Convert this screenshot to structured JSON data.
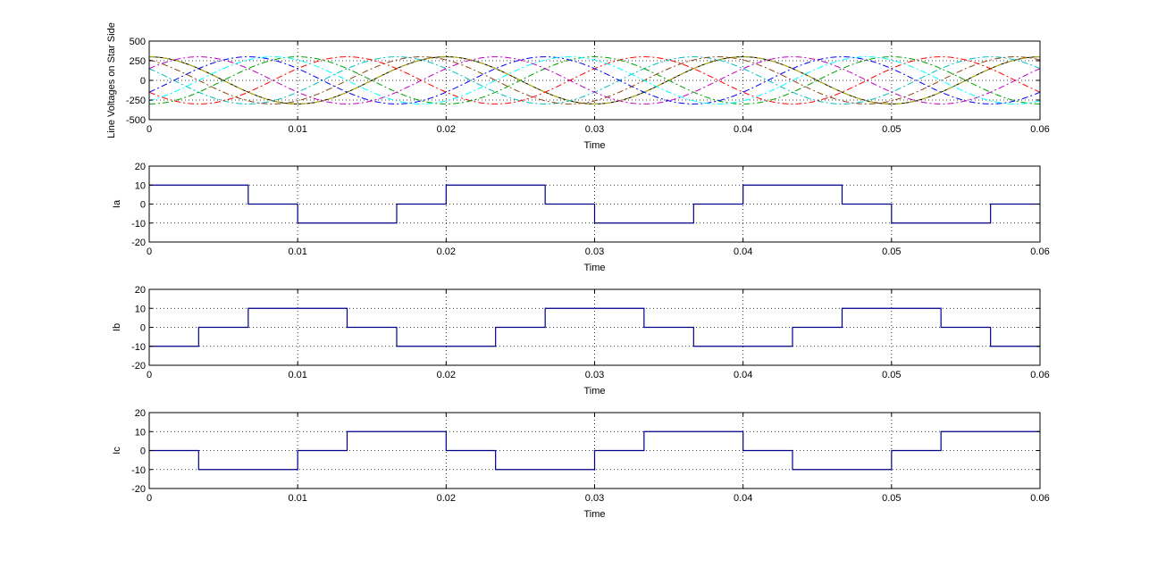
{
  "colors": {
    "axes": "#000000",
    "grid": "#000000",
    "current_trace": "#00008b",
    "voltage_series": [
      "#000000",
      "#b8b800",
      "#00bfbf",
      "#ff0000",
      "#00a000",
      "#0000ff",
      "#bf00bf",
      "#8b4513",
      "#00ffff"
    ]
  },
  "chart_data": [
    {
      "type": "line",
      "ylabel": "Line Voltages on Star Side",
      "xlabel": "Time",
      "xlim": [
        0,
        0.06
      ],
      "ylim": [
        -500,
        500
      ],
      "x_ticks": [
        "0",
        "0.01",
        "0.02",
        "0.03",
        "0.04",
        "0.05",
        "0.06"
      ],
      "y_ticks": [
        "500",
        "250",
        "0",
        "-250",
        "-500"
      ],
      "grid": "dotted",
      "frequency_hz": 50,
      "series": [
        {
          "style": "solid",
          "amplitude": 300,
          "phase_deg": 0
        },
        {
          "style": "dashdot",
          "amplitude": 300,
          "phase_deg": 0
        },
        {
          "style": "dashdot",
          "amplitude": 300,
          "phase_deg": 60
        },
        {
          "style": "dashdot",
          "amplitude": 300,
          "phase_deg": 120
        },
        {
          "style": "dashdot",
          "amplitude": 300,
          "phase_deg": 180
        },
        {
          "style": "dashdot",
          "amplitude": 300,
          "phase_deg": 240
        },
        {
          "style": "dashdot",
          "amplitude": 300,
          "phase_deg": 300
        },
        {
          "style": "dashdot",
          "amplitude": 300,
          "phase_deg": 30
        },
        {
          "style": "dashdot",
          "amplitude": 300,
          "phase_deg": 210
        }
      ]
    },
    {
      "type": "line",
      "ylabel": "Ia",
      "xlabel": "Time",
      "xlim": [
        0,
        0.06
      ],
      "ylim": [
        -20,
        20
      ],
      "x_ticks": [
        "0",
        "0.01",
        "0.02",
        "0.03",
        "0.04",
        "0.05",
        "0.06"
      ],
      "y_ticks": [
        "20",
        "10",
        "0",
        "-10",
        "-20"
      ],
      "grid": "dotted",
      "series": [
        {
          "x": [
            0,
            0.00667,
            0.00667,
            0.01,
            0.01,
            0.01667,
            0.01667,
            0.02,
            0.02,
            0.02667,
            0.02667,
            0.03,
            0.03,
            0.03667,
            0.03667,
            0.04,
            0.04,
            0.04667,
            0.04667,
            0.05,
            0.05,
            0.05667,
            0.05667,
            0.06
          ],
          "y": [
            10,
            10,
            0,
            0,
            -10,
            -10,
            0,
            0,
            10,
            10,
            0,
            0,
            -10,
            -10,
            0,
            0,
            10,
            10,
            0,
            0,
            -10,
            -10,
            0,
            0
          ]
        }
      ]
    },
    {
      "type": "line",
      "ylabel": "Ib",
      "xlabel": "Time",
      "xlim": [
        0,
        0.06
      ],
      "ylim": [
        -20,
        20
      ],
      "x_ticks": [
        "0",
        "0.01",
        "0.02",
        "0.03",
        "0.04",
        "0.05",
        "0.06"
      ],
      "y_ticks": [
        "20",
        "10",
        "0",
        "-10",
        "-20"
      ],
      "grid": "dotted",
      "series": [
        {
          "x": [
            0,
            0.00333,
            0.00333,
            0.00667,
            0.00667,
            0.01333,
            0.01333,
            0.01667,
            0.01667,
            0.02333,
            0.02333,
            0.02667,
            0.02667,
            0.03333,
            0.03333,
            0.03667,
            0.03667,
            0.04333,
            0.04333,
            0.04667,
            0.04667,
            0.05333,
            0.05333,
            0.05667,
            0.05667,
            0.06
          ],
          "y": [
            -10,
            -10,
            0,
            0,
            10,
            10,
            0,
            0,
            -10,
            -10,
            0,
            0,
            10,
            10,
            0,
            0,
            -10,
            -10,
            0,
            0,
            10,
            10,
            0,
            0,
            -10,
            -10
          ]
        }
      ]
    },
    {
      "type": "line",
      "ylabel": "Ic",
      "xlabel": "Time",
      "xlim": [
        0,
        0.06
      ],
      "ylim": [
        -20,
        20
      ],
      "x_ticks": [
        "0",
        "0.01",
        "0.02",
        "0.03",
        "0.04",
        "0.05",
        "0.06"
      ],
      "y_ticks": [
        "20",
        "10",
        "0",
        "-10",
        "-20"
      ],
      "grid": "dotted",
      "series": [
        {
          "x": [
            0,
            0.00333,
            0.00333,
            0.01,
            0.01,
            0.01333,
            0.01333,
            0.02,
            0.02,
            0.02333,
            0.02333,
            0.03,
            0.03,
            0.03333,
            0.03333,
            0.04,
            0.04,
            0.04333,
            0.04333,
            0.05,
            0.05,
            0.05333,
            0.05333,
            0.06
          ],
          "y": [
            0,
            0,
            -10,
            -10,
            0,
            0,
            10,
            10,
            0,
            0,
            -10,
            -10,
            0,
            0,
            10,
            10,
            0,
            0,
            -10,
            -10,
            0,
            0,
            10,
            10
          ]
        }
      ]
    }
  ]
}
